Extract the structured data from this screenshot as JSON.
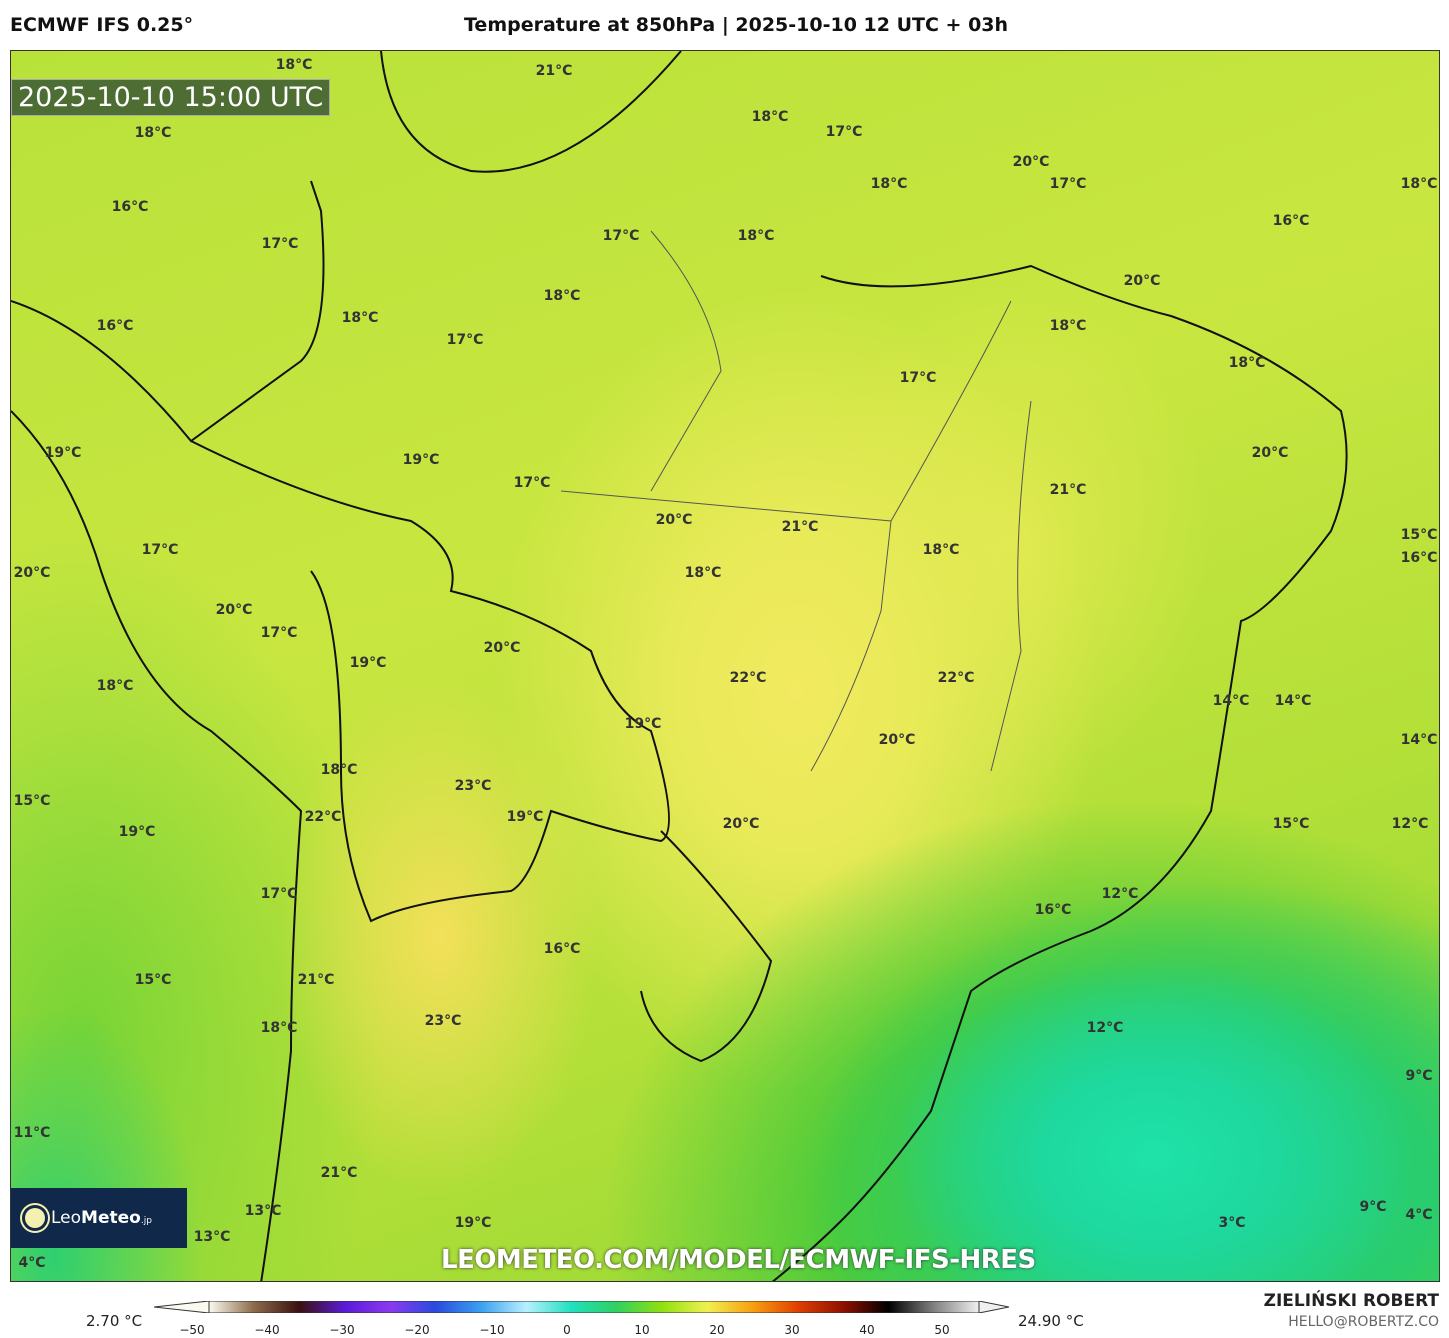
{
  "header": {
    "model": "ECMWF IFS 0.25°",
    "title": "Temperature at 850hPa | 2025-10-10 12 UTC + 03h"
  },
  "timestamp": "2025-10-10 15:00 UTC",
  "watermark_url": "LEOMETEO.COM/MODEL/ECMWF-IFS-HRES",
  "logo": {
    "text_light": "Leo",
    "text_bold": "Meteo",
    "suffix": ".jp"
  },
  "labels": [
    "18°C",
    "21°C",
    "18°C",
    "18°C",
    "17°C",
    "20°C",
    "17°C",
    "18°C",
    "18°C",
    "16°C",
    "16°C",
    "17°C",
    "17°C",
    "18°C",
    "20°C",
    "18°C",
    "18°C",
    "16°C",
    "18°C",
    "17°C",
    "18°C",
    "17°C",
    "19°C",
    "19°C",
    "20°C",
    "17°C",
    "21°C",
    "20°C",
    "21°C",
    "17°C",
    "18°C",
    "15°C",
    "16°C",
    "20°C",
    "18°C",
    "20°C",
    "17°C",
    "20°C",
    "19°C",
    "22°C",
    "22°C",
    "18°C",
    "14°C",
    "14°C",
    "14°C",
    "20°C",
    "19°C",
    "18°C",
    "23°C",
    "15°C",
    "22°C",
    "19°C",
    "19°C",
    "20°C",
    "15°C",
    "12°C",
    "17°C",
    "12°C",
    "16°C",
    "16°C",
    "15°C",
    "21°C",
    "23°C",
    "18°C",
    "12°C",
    "9°C",
    "11°C",
    "21°C",
    "9°C",
    "4°C",
    "13°C",
    "13°C",
    "3°C",
    "19°C",
    "4°C"
  ],
  "colorbar": {
    "min_label": "2.70 °C",
    "max_label": "24.90 °C",
    "ticks": [
      "−50",
      "−40",
      "−30",
      "−20",
      "−10",
      "0",
      "10",
      "20",
      "30",
      "40",
      "50"
    ],
    "colors": [
      "#fbfaf0",
      "#8a6a4a",
      "#3a1010",
      "#5a1ad8",
      "#8a3af0",
      "#2a4ae0",
      "#3aa0f0",
      "#b8f0ff",
      "#20e0c0",
      "#30d060",
      "#90e010",
      "#f0f050",
      "#f8a010",
      "#e04000",
      "#901000",
      "#000000",
      "#808080",
      "#f0f0f0"
    ]
  },
  "credit": {
    "name": "ZIELIŃSKI ROBERT",
    "email": "HELLO@ROBERTZ.CO"
  }
}
